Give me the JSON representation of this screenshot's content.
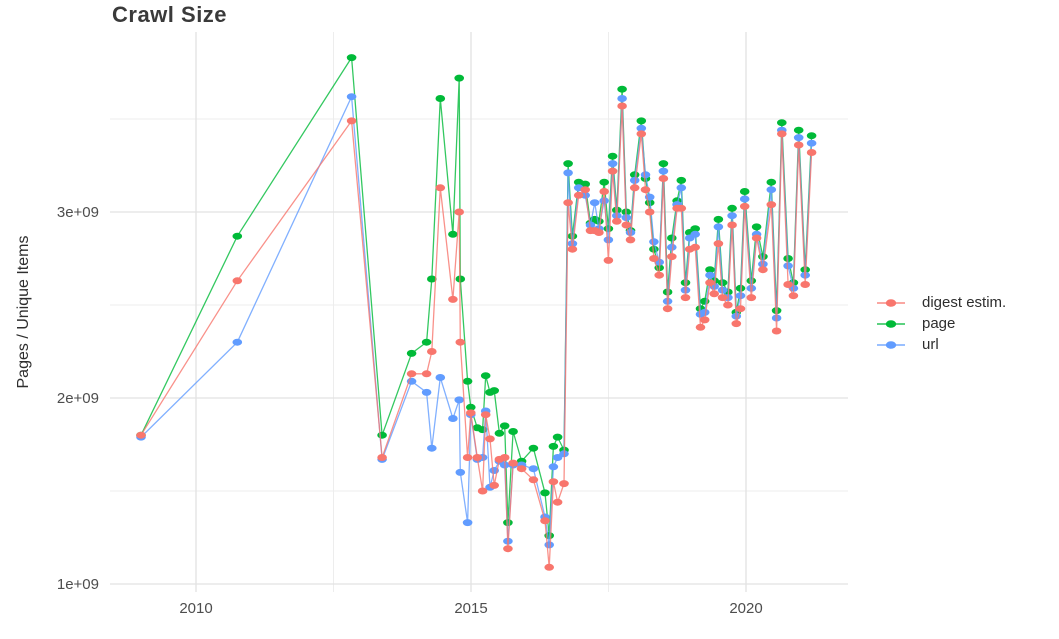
{
  "page": {
    "title": "Crawl Size"
  },
  "chart_data": {
    "type": "line",
    "title": "Crawl Size",
    "xlabel": "",
    "ylabel": "Pages / Unique Items",
    "value_unit": "1e9 (billions)",
    "grid": true,
    "legend": {
      "position": "right",
      "items": [
        "digest estim.",
        "page",
        "url"
      ]
    },
    "x_axis": {
      "range": [
        2008.44,
        2021.85
      ],
      "ticks": [
        {
          "value": 2010,
          "label": "2010"
        },
        {
          "value": 2015,
          "label": "2015"
        },
        {
          "value": 2020,
          "label": "2020"
        }
      ],
      "minor_ticks": [
        2012.5,
        2017.5
      ]
    },
    "y_axis": {
      "range": [
        0.96,
        3.97
      ],
      "ticks": [
        {
          "value": 1,
          "label": "1e+09"
        },
        {
          "value": 2,
          "label": "2e+09"
        },
        {
          "value": 3,
          "label": "3e+09"
        }
      ],
      "minor_ticks": [
        1.5,
        2.5,
        3.5
      ]
    },
    "x": [
      2009.0,
      2010.75,
      2012.83,
      2013.383,
      2013.92,
      2014.192,
      2014.287,
      2014.441,
      2014.67,
      2014.785,
      2014.805,
      2014.939,
      2014.996,
      2015.115,
      2015.211,
      2015.268,
      2015.345,
      2015.421,
      2015.517,
      2015.613,
      2015.67,
      2015.766,
      2015.92,
      2016.134,
      2016.345,
      2016.421,
      2016.498,
      2016.575,
      2016.69,
      2016.766,
      2016.843,
      2016.958,
      2017.077,
      2017.172,
      2017.249,
      2017.326,
      2017.421,
      2017.498,
      2017.575,
      2017.651,
      2017.747,
      2017.824,
      2017.9,
      2017.977,
      2018.096,
      2018.172,
      2018.249,
      2018.326,
      2018.421,
      2018.498,
      2018.575,
      2018.651,
      2018.747,
      2018.824,
      2018.9,
      2018.977,
      2019.077,
      2019.172,
      2019.249,
      2019.345,
      2019.421,
      2019.498,
      2019.575,
      2019.67,
      2019.747,
      2019.824,
      2019.9,
      2019.977,
      2020.096,
      2020.192,
      2020.307,
      2020.46,
      2020.556,
      2020.651,
      2020.766,
      2020.862,
      2020.958,
      2021.077,
      2021.192
    ],
    "series": [
      {
        "name": "digest estim.",
        "color": "#F8766D",
        "values": [
          1.8,
          2.63,
          3.49,
          1.68,
          2.13,
          2.13,
          2.25,
          3.13,
          2.53,
          3.0,
          2.3,
          1.68,
          1.92,
          1.68,
          1.5,
          1.91,
          1.78,
          1.53,
          1.67,
          1.68,
          1.19,
          1.65,
          1.62,
          1.56,
          1.34,
          1.09,
          1.55,
          1.44,
          1.54,
          3.05,
          2.8,
          3.09,
          3.12,
          2.9,
          2.9,
          2.89,
          3.11,
          2.74,
          3.22,
          2.95,
          3.57,
          2.93,
          2.85,
          3.13,
          3.42,
          3.12,
          3.0,
          2.75,
          2.66,
          3.18,
          2.48,
          2.76,
          3.02,
          3.02,
          2.54,
          2.8,
          2.81,
          2.38,
          2.42,
          2.62,
          2.56,
          2.83,
          2.54,
          2.5,
          2.93,
          2.4,
          2.48,
          3.03,
          2.54,
          2.86,
          2.69,
          3.04,
          2.36,
          3.42,
          2.61,
          2.55,
          3.36,
          2.61,
          3.32
        ]
      },
      {
        "name": "page",
        "color": "#00BA38",
        "values": [
          1.8,
          2.87,
          3.83,
          1.8,
          2.24,
          2.3,
          2.64,
          3.61,
          2.88,
          3.72,
          2.64,
          2.09,
          1.95,
          1.84,
          1.83,
          2.12,
          2.03,
          2.04,
          1.81,
          1.85,
          1.33,
          1.82,
          1.66,
          1.73,
          1.49,
          1.26,
          1.74,
          1.79,
          1.72,
          3.26,
          2.87,
          3.16,
          3.15,
          2.94,
          2.96,
          2.95,
          3.16,
          2.91,
          3.3,
          3.01,
          3.66,
          3.0,
          2.9,
          3.2,
          3.49,
          3.18,
          3.05,
          2.8,
          2.7,
          3.26,
          2.57,
          2.86,
          3.06,
          3.17,
          2.62,
          2.89,
          2.91,
          2.48,
          2.52,
          2.69,
          2.63,
          2.96,
          2.62,
          2.57,
          3.02,
          2.46,
          2.59,
          3.11,
          2.63,
          2.92,
          2.76,
          3.16,
          2.47,
          3.48,
          2.75,
          2.62,
          3.44,
          2.69,
          3.41
        ]
      },
      {
        "name": "url",
        "color": "#619CFF",
        "values": [
          1.79,
          2.3,
          3.62,
          1.67,
          2.09,
          2.03,
          1.73,
          2.11,
          1.89,
          1.99,
          1.6,
          1.33,
          1.91,
          1.67,
          1.68,
          1.93,
          1.52,
          1.61,
          1.66,
          1.64,
          1.23,
          1.64,
          1.64,
          1.62,
          1.36,
          1.21,
          1.63,
          1.68,
          1.7,
          3.21,
          2.83,
          3.13,
          3.09,
          2.93,
          3.05,
          2.91,
          3.06,
          2.85,
          3.26,
          2.98,
          3.61,
          2.97,
          2.89,
          3.17,
          3.45,
          3.2,
          3.08,
          2.84,
          2.73,
          3.22,
          2.52,
          2.81,
          3.04,
          3.13,
          2.58,
          2.86,
          2.88,
          2.45,
          2.46,
          2.66,
          2.6,
          2.92,
          2.58,
          2.54,
          2.98,
          2.44,
          2.55,
          3.07,
          2.59,
          2.88,
          2.72,
          3.12,
          2.43,
          3.44,
          2.71,
          2.59,
          3.4,
          2.66,
          3.37
        ]
      }
    ],
    "draw_order": [
      1,
      2,
      0
    ],
    "style": {
      "grid_major_color": "#e2e2e2",
      "grid_minor_color": "#ededed",
      "tick_label_color": "#4d4d4d",
      "background": "#ffffff"
    }
  }
}
